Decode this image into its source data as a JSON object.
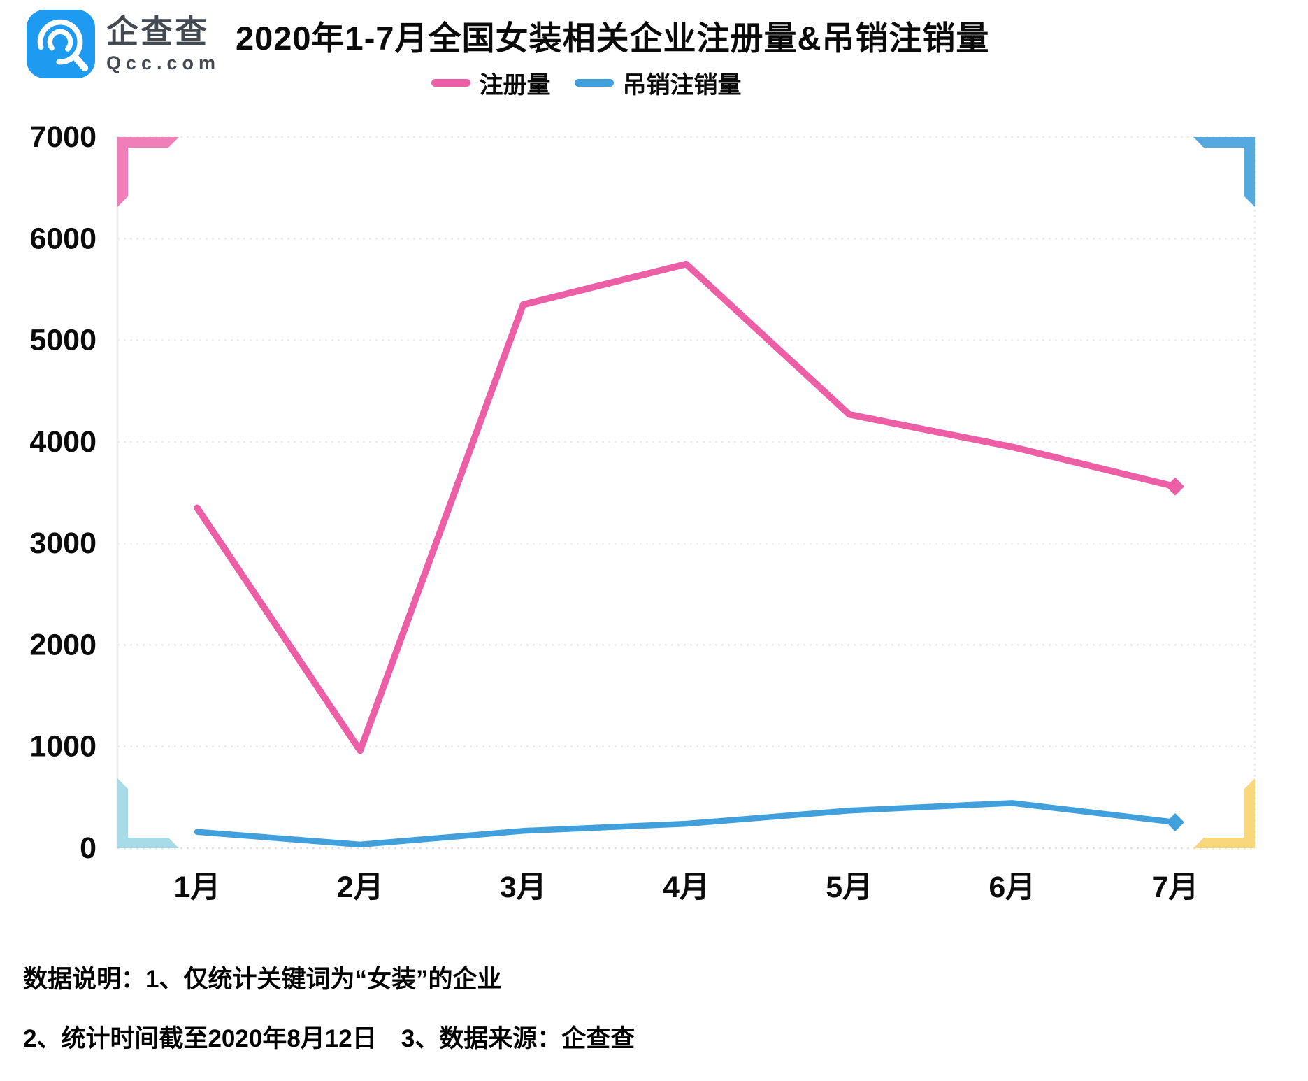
{
  "header": {
    "title": "2020年1-7月全国女装相关企业注册量&吊销注销量",
    "logo": {
      "brand_cn": "企查查",
      "brand_en": "Qcc.com",
      "brand_color": "#1e9bf0",
      "icon": "qcc-magnifier-icon"
    }
  },
  "chart_data": {
    "type": "line",
    "title": "2020年1-7月全国女装相关企业注册量&吊销注销量",
    "categories": [
      "1月",
      "2月",
      "3月",
      "4月",
      "5月",
      "6月",
      "7月"
    ],
    "series": [
      {
        "name": "注册量",
        "color": "#ec5fa7",
        "values": [
          3350,
          960,
          5350,
          5750,
          4270,
          3950,
          3560
        ],
        "end_marker": "diamond"
      },
      {
        "name": "吊销注销量",
        "color": "#41a0db",
        "values": [
          160,
          35,
          170,
          240,
          370,
          445,
          255
        ],
        "end_marker": "diamond"
      }
    ],
    "ylim": [
      0,
      7000
    ],
    "yticks": [
      0,
      1000,
      2000,
      3000,
      4000,
      5000,
      6000,
      7000
    ],
    "xlabel": "",
    "ylabel": "",
    "grid": "horizontal-dotted",
    "legend_position": "top-center",
    "corner_marks": {
      "top_left": "#f07eb8",
      "top_right": "#54a9df",
      "bottom_left": "#a7dbe8",
      "bottom_right": "#f8d77d"
    }
  },
  "footnotes": {
    "line1": "数据说明：1、仅统计关键词为“女装”的企业",
    "line2": "2、统计时间截至2020年8月12日　3、数据来源：企查查"
  }
}
